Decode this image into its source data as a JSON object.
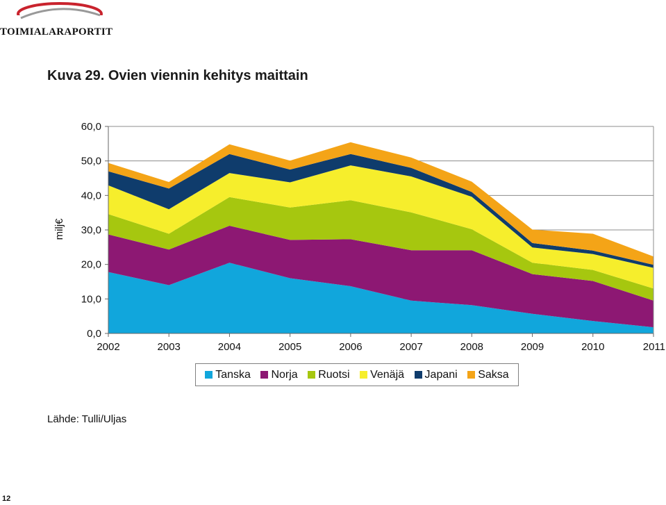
{
  "header": {
    "logo_text": "TOIMIALARAPORTIT"
  },
  "figure": {
    "title": "Kuva 29. Ovien viennin kehitys maittain"
  },
  "source": "Lähde: Tulli/Uljas",
  "page_number": "12",
  "colors": {
    "Tanska": "#11a6dc",
    "Norja": "#8d1873",
    "Ruotsi": "#a6c70f",
    "Venäjä": "#f6ee2c",
    "Japani": "#0f3c6c",
    "Saksa": "#f4a417",
    "logo_arc": "#c9232d",
    "grid": "#8c8c8c"
  },
  "chart_data": {
    "type": "area",
    "stacked": true,
    "title": "",
    "ylabel": "milj€",
    "xlabel": "",
    "ylim": [
      0,
      60
    ],
    "y_ticks": [
      "0,0",
      "10,0",
      "20,0",
      "30,0",
      "40,0",
      "50,0",
      "60,0"
    ],
    "y_tick_values": [
      0,
      10,
      20,
      30,
      40,
      50,
      60
    ],
    "categories": [
      "2002",
      "2003",
      "2004",
      "2005",
      "2006",
      "2007",
      "2008",
      "2009",
      "2010",
      "2011"
    ],
    "grid": true,
    "legend_position": "bottom",
    "series": [
      {
        "name": "Tanska",
        "values": [
          17.8,
          14.0,
          20.5,
          16.0,
          13.7,
          9.5,
          8.2,
          5.7,
          3.6,
          1.8
        ]
      },
      {
        "name": "Norja",
        "values": [
          10.9,
          10.3,
          10.7,
          11.1,
          13.6,
          14.6,
          15.9,
          11.5,
          11.6,
          7.7
        ]
      },
      {
        "name": "Ruotsi",
        "values": [
          5.9,
          4.6,
          8.3,
          9.4,
          11.3,
          11.0,
          6.1,
          3.3,
          3.2,
          3.5
        ]
      },
      {
        "name": "Venäjä",
        "values": [
          8.3,
          7.1,
          7.0,
          7.3,
          10.1,
          10.4,
          9.4,
          4.4,
          4.6,
          6.0
        ]
      },
      {
        "name": "Japani",
        "values": [
          4.1,
          6.0,
          5.5,
          3.7,
          3.3,
          2.5,
          1.4,
          1.3,
          1.0,
          0.9
        ]
      },
      {
        "name": "Saksa",
        "values": [
          2.4,
          1.9,
          2.8,
          2.6,
          3.4,
          3.0,
          3.0,
          3.9,
          4.9,
          2.4
        ]
      }
    ]
  }
}
